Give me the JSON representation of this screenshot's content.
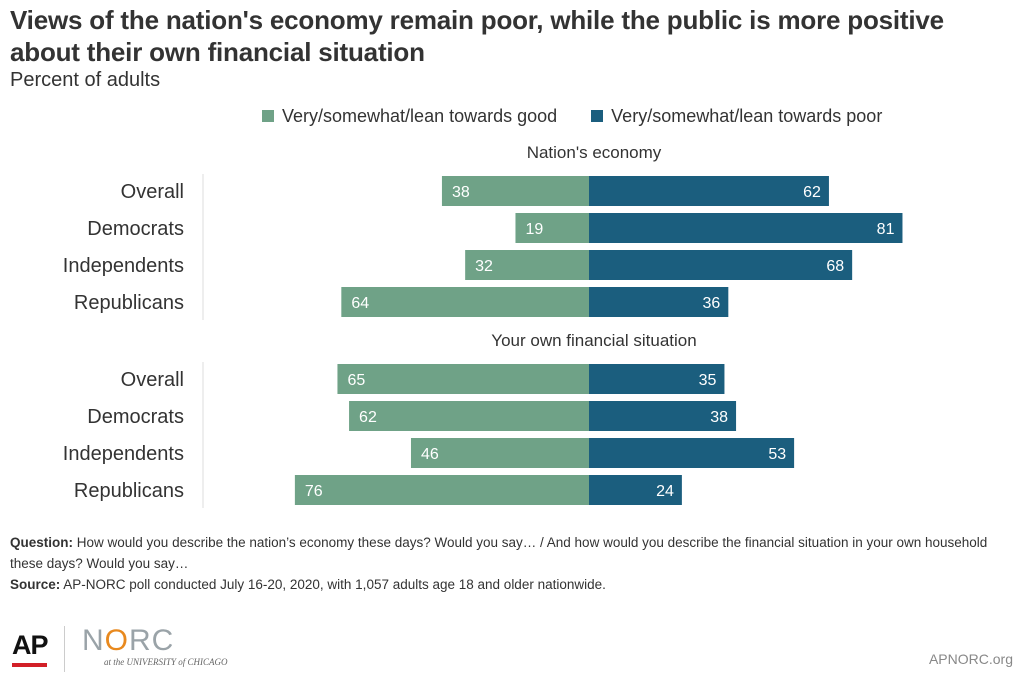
{
  "title": "Views of the nation's economy remain poor, while the public is more positive about their own financial situation",
  "subtitle": "Percent of adults",
  "colors": {
    "good": "#6fa287",
    "poor": "#1b5e7e",
    "text": "#333333"
  },
  "legend": [
    {
      "label": "Very/somewhat/lean towards good",
      "color": "#6fa287"
    },
    {
      "label": "Very/somewhat/lean towards poor",
      "color": "#1b5e7e"
    }
  ],
  "chart_data": {
    "type": "bar",
    "orientation": "diverging-horizontal",
    "panels": [
      {
        "title": "Nation's economy",
        "categories": [
          "Overall",
          "Democrats",
          "Independents",
          "Republicans"
        ],
        "series": [
          {
            "name": "Very/somewhat/lean towards good",
            "values": [
              38,
              19,
              32,
              64
            ]
          },
          {
            "name": "Very/somewhat/lean towards poor",
            "values": [
              62,
              81,
              68,
              36
            ]
          }
        ]
      },
      {
        "title": "Your own financial situation",
        "categories": [
          "Overall",
          "Democrats",
          "Independents",
          "Republicans"
        ],
        "series": [
          {
            "name": "Very/somewhat/lean towards good",
            "values": [
              65,
              62,
              46,
              76
            ]
          },
          {
            "name": "Very/somewhat/lean towards poor",
            "values": [
              35,
              38,
              53,
              24
            ]
          }
        ]
      }
    ],
    "legend_position": "top",
    "grid": false
  },
  "footnote": {
    "question_label": "Question:",
    "question_text": "How would you describe the nation’s economy these days? Would you say… / And how would you describe the financial situation in your own household these days? Would you say…",
    "source_label": "Source:",
    "source_text": "AP-NORC poll conducted July 16-20, 2020, with 1,057 adults age 18 and older nationwide."
  },
  "logos": {
    "ap": "AP",
    "norc_prefix": "N",
    "norc_o": "O",
    "norc_suffix": "RC",
    "norc_sub": "at the UNIVERSITY of CHICAGO"
  },
  "site": "APNORC.org"
}
